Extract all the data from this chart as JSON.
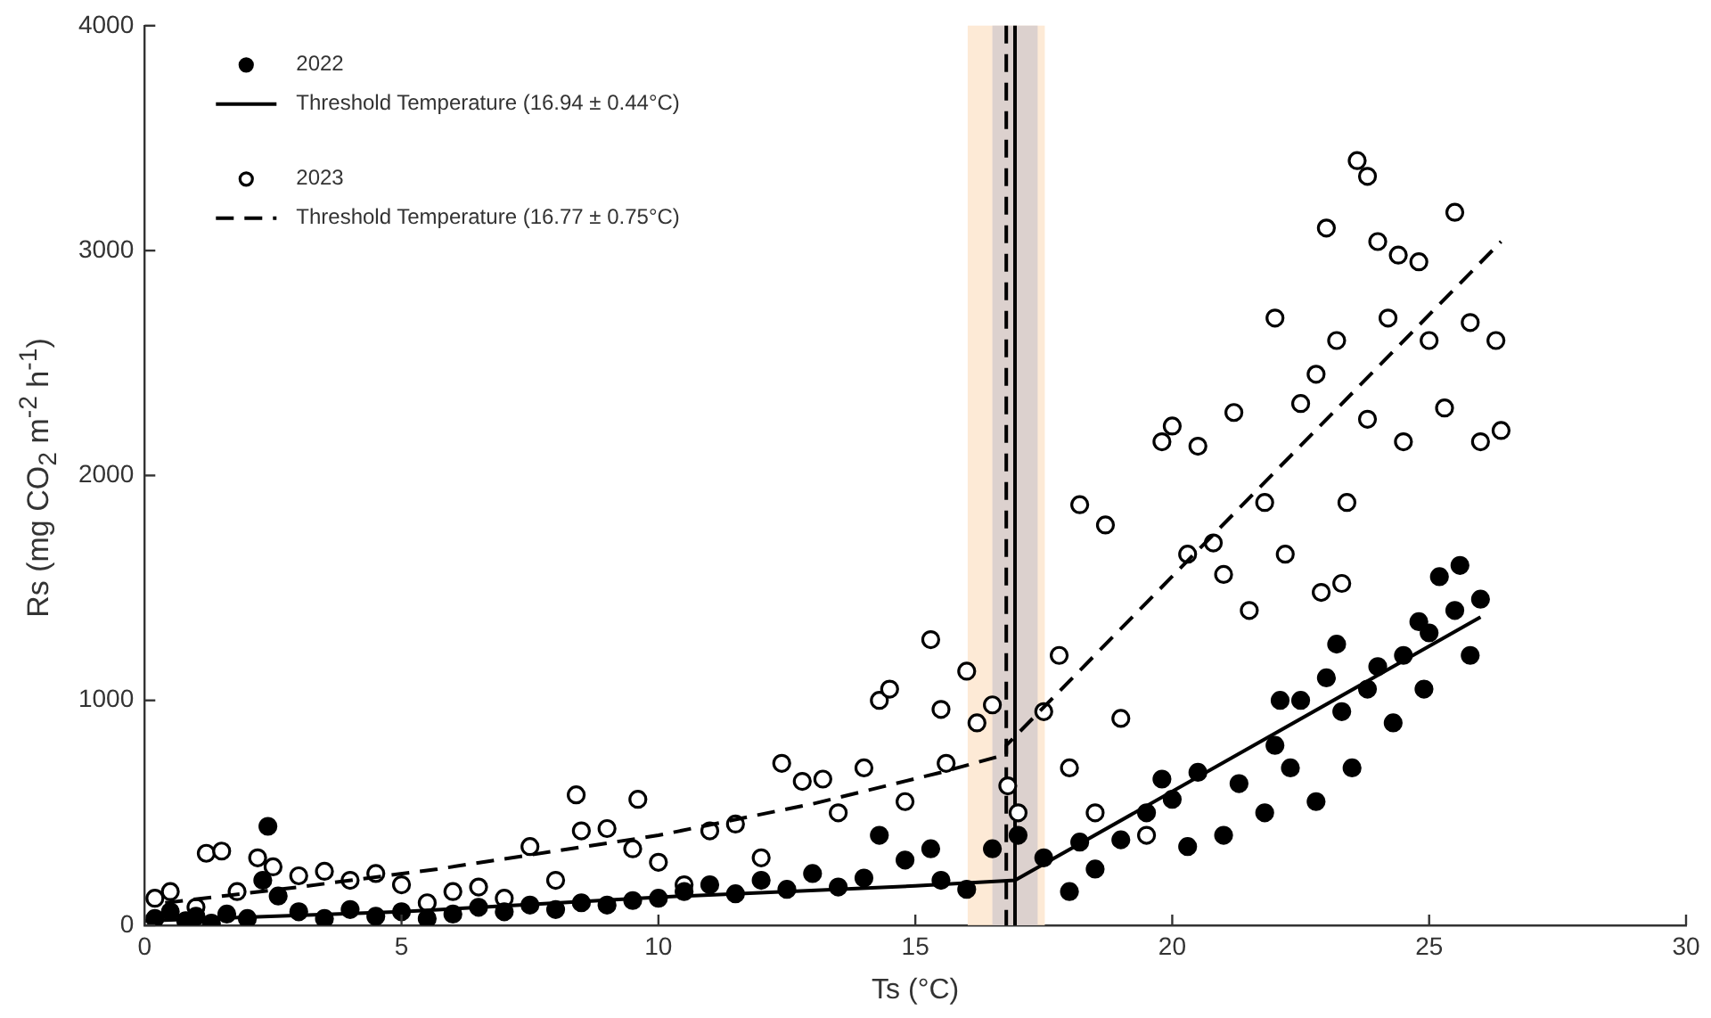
{
  "chart_data": {
    "type": "scatter",
    "xlabel": "Ts (°C)",
    "ylabel": "Rs (mg CO$_{2}$ m$^{-2}$ h$^{-1}$)",
    "xlim": [
      0,
      30
    ],
    "xticks": [
      0,
      5,
      10,
      15,
      20,
      25,
      30
    ],
    "ylim": [
      0,
      4000
    ],
    "yticks": [
      0,
      1000,
      2000,
      3000,
      4000
    ],
    "grid": false,
    "legend": "top left",
    "bands": [
      {
        "axis": "x",
        "from": 16.02,
        "to": 17.52,
        "color": "#fde6cf"
      },
      {
        "axis": "x",
        "from": 16.5,
        "to": 17.38,
        "color": "#d6cccc"
      }
    ],
    "ref_lines": [
      {
        "axis": "x",
        "value": 16.94,
        "color": "#000000",
        "line_style": "solid"
      },
      {
        "axis": "x",
        "value": 16.77,
        "color": "#000000",
        "line_style": "dashed"
      }
    ],
    "series": [
      {
        "name": "2022",
        "type": "scatter",
        "marker": "circle",
        "color": "#000000",
        "x": [
          0.2,
          0.5,
          0.8,
          1,
          1.3,
          1.6,
          2,
          2.3,
          2.4,
          2.6,
          3,
          3.5,
          4,
          4.5,
          5,
          5.5,
          6,
          6.5,
          7,
          7.5,
          8,
          8.5,
          9,
          9.5,
          10,
          10.5,
          11,
          11.5,
          12,
          12.5,
          13,
          13.5,
          14,
          14.3,
          14.8,
          15.3,
          15.5,
          16,
          16.5,
          17,
          17.5,
          18,
          18.2,
          18.5,
          19,
          19.5,
          19.8,
          20,
          20.3,
          20.5,
          21,
          21.3,
          21.8,
          22,
          22.3,
          22.5,
          22.8,
          23,
          23.3,
          23.5,
          23.8,
          24,
          24.3,
          24.5,
          24.8,
          25,
          25.2,
          25.5,
          25.6,
          26,
          25.8,
          24.9,
          23.2,
          22.1
        ],
        "values": [
          30,
          60,
          20,
          40,
          10,
          50,
          30,
          200,
          440,
          130,
          60,
          30,
          70,
          40,
          60,
          30,
          50,
          80,
          60,
          90,
          70,
          100,
          90,
          110,
          120,
          150,
          180,
          140,
          200,
          160,
          230,
          170,
          210,
          400,
          290,
          340,
          200,
          160,
          340,
          400,
          300,
          150,
          370,
          250,
          380,
          500,
          650,
          560,
          350,
          680,
          400,
          630,
          500,
          800,
          700,
          1000,
          550,
          1100,
          950,
          700,
          1050,
          1150,
          900,
          1200,
          1350,
          1300,
          1550,
          1400,
          1600,
          1450,
          1200,
          1050,
          1250,
          1000
        ]
      },
      {
        "name": "Threshold Temperature (16.94 ± 0.44°C)",
        "type": "line",
        "marker": "none",
        "line_style": "solid",
        "color": "#000000",
        "x": [
          0,
          5,
          10,
          15,
          16.94,
          26
        ],
        "values": [
          20,
          60,
          125,
          175,
          200,
          1370
        ]
      },
      {
        "name": "2023",
        "type": "scatter",
        "marker": "circle",
        "color": "#ffffff",
        "x": [
          0.2,
          0.5,
          1,
          1.2,
          1.5,
          1.8,
          2.2,
          2.5,
          3,
          3.5,
          4,
          4.5,
          5,
          5.5,
          6,
          6.5,
          7,
          7.5,
          8,
          8.4,
          8.5,
          9,
          9.6,
          9.5,
          10,
          10.5,
          11,
          11.5,
          12,
          12.4,
          12.8,
          13.2,
          13.5,
          14,
          14.3,
          14.5,
          14.8,
          15.3,
          15.5,
          15.6,
          16,
          16.2,
          16.5,
          16.8,
          17,
          17.5,
          17.8,
          18,
          18.2,
          18.5,
          18.7,
          19,
          19.5,
          19.8,
          20,
          20.3,
          20.5,
          20.8,
          21.2,
          21.5,
          21.8,
          22,
          22.2,
          22.5,
          22.8,
          23,
          23.2,
          23.4,
          23.6,
          23.8,
          24,
          24.2,
          24.5,
          24.8,
          25,
          25.3,
          25.5,
          25.8,
          26,
          26.3,
          26.4,
          23.8,
          24.4,
          22.9,
          23.3,
          21
        ],
        "values": [
          120,
          150,
          80,
          320,
          330,
          150,
          300,
          260,
          220,
          240,
          200,
          230,
          180,
          100,
          150,
          170,
          120,
          350,
          200,
          580,
          420,
          430,
          560,
          340,
          280,
          180,
          420,
          450,
          300,
          720,
          640,
          650,
          500,
          700,
          1000,
          1050,
          550,
          1270,
          960,
          720,
          1130,
          900,
          980,
          620,
          500,
          950,
          1200,
          700,
          1870,
          500,
          1780,
          920,
          400,
          2150,
          2220,
          1650,
          2130,
          1700,
          2280,
          1400,
          1880,
          2700,
          1650,
          2320,
          2450,
          3100,
          2600,
          1880,
          3400,
          3330,
          3040,
          2700,
          2150,
          2950,
          2600,
          2300,
          3170,
          2680,
          2150,
          2600,
          2200,
          2250,
          2980,
          1480,
          1520,
          1560
        ]
      },
      {
        "name": "Threshold Temperature (16.77 ± 0.75°C)",
        "type": "line",
        "marker": "none",
        "line_style": "dashed",
        "color": "#000000",
        "x": [
          0.4,
          3,
          5.7,
          10,
          13,
          15.5,
          16.77,
          16.77,
          26.4
        ],
        "values": [
          100,
          170,
          250,
          400,
          540,
          680,
          760,
          800,
          3040
        ]
      }
    ]
  }
}
